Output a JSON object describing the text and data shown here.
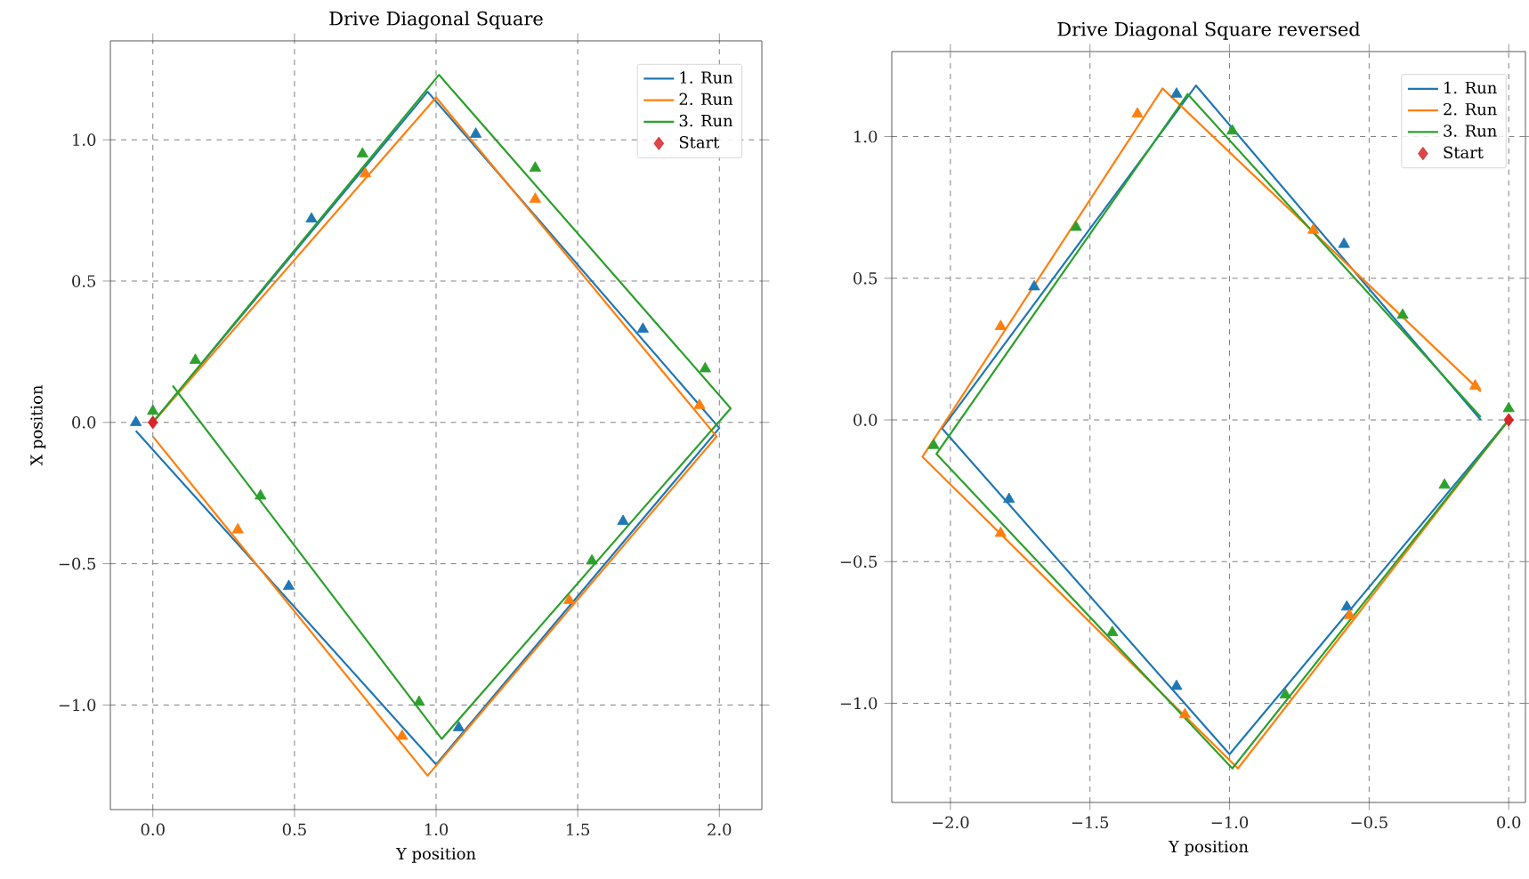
{
  "chart_data": [
    {
      "type": "line",
      "title": "Drive Diagonal Square",
      "xlabel": "Y position",
      "ylabel": "X position",
      "xlim": [
        -0.15,
        2.15
      ],
      "ylim": [
        -1.37,
        1.35
      ],
      "xticks": [
        {
          "value": 0,
          "label": "0.0"
        },
        0.5,
        {
          "value": 1,
          "label": "1.0"
        },
        1.5,
        {
          "value": 2,
          "label": "2.0"
        }
      ],
      "yticks": [
        {
          "value": -1,
          "label": "−1.0"
        },
        {
          "value": -0.5,
          "label": "−0.5"
        },
        {
          "value": 0,
          "label": "0.0"
        },
        0.5,
        {
          "value": 1,
          "label": "1.0"
        }
      ],
      "grid": true,
      "legend": "top right",
      "series": [
        {
          "name": "1. Run",
          "color": "#1f77b4",
          "marker": "none",
          "x": [
            0,
            0.97,
            2.0,
            1.0,
            -0.06
          ],
          "values": [
            0,
            1.17,
            -0.02,
            -1.21,
            -0.03
          ]
        },
        {
          "name": "2. Run",
          "color": "#ff7f0e",
          "marker": "none",
          "x": [
            0,
            1.0,
            1.99,
            0.97,
            0.0
          ],
          "values": [
            0,
            1.15,
            -0.05,
            -1.25,
            -0.05
          ]
        },
        {
          "name": "3. Run",
          "color": "#2ca02c",
          "marker": "none",
          "x": [
            0,
            1.01,
            2.04,
            1.02,
            0.07
          ],
          "values": [
            0,
            1.23,
            0.05,
            -1.12,
            0.13
          ]
        },
        {
          "name": "Start",
          "type": "scatter",
          "color": "#d62728",
          "marker": "diamond",
          "x": [
            0
          ],
          "values": [
            0
          ]
        },
        {
          "type": "scatter",
          "color": "#1f77b4",
          "marker": "triangle",
          "x": [
            0.56,
            1.14,
            1.73,
            1.66,
            1.08,
            0.48,
            -0.06
          ],
          "values": [
            0.72,
            1.02,
            0.33,
            -0.35,
            -1.08,
            -0.58,
            0.0
          ]
        },
        {
          "type": "scatter",
          "color": "#ff7f0e",
          "marker": "triangle",
          "x": [
            0.75,
            1.35,
            1.93,
            1.47,
            0.88,
            0.3
          ],
          "values": [
            0.88,
            0.79,
            0.06,
            -0.63,
            -1.11,
            -0.38
          ]
        },
        {
          "type": "scatter",
          "color": "#2ca02c",
          "marker": "triangle",
          "x": [
            0.74,
            1.35,
            1.95,
            1.55,
            0.94,
            0.38,
            0.15,
            0.0
          ],
          "values": [
            0.95,
            0.9,
            0.19,
            -0.49,
            -0.99,
            -0.26,
            0.22,
            0.04
          ]
        }
      ]
    },
    {
      "type": "line",
      "title": "Drive Diagonal Square reversed",
      "xlabel": "Y position",
      "xlim": [
        -2.21,
        0.06
      ],
      "ylim": [
        -1.35,
        1.3
      ],
      "xticks": [
        {
          "value": -2,
          "label": "−2.0"
        },
        {
          "value": -1.5,
          "label": "−1.5"
        },
        {
          "value": -1,
          "label": "−1.0"
        },
        {
          "value": -0.5,
          "label": "−0.5"
        },
        {
          "value": 0,
          "label": "0.0"
        }
      ],
      "yticks": [
        {
          "value": -1,
          "label": "−1.0"
        },
        {
          "value": -0.5,
          "label": "−0.5"
        },
        {
          "value": 0,
          "label": "0.0"
        },
        0.5,
        {
          "value": 1,
          "label": "1.0"
        }
      ],
      "grid": true,
      "legend": "top right",
      "series": [
        {
          "name": "1. Run",
          "color": "#1f77b4",
          "marker": "none",
          "x": [
            0,
            -1.0,
            -2.03,
            -1.12,
            -0.1
          ],
          "values": [
            0,
            -1.18,
            -0.03,
            1.18,
            0.0
          ]
        },
        {
          "name": "2. Run",
          "color": "#ff7f0e",
          "marker": "none",
          "x": [
            0,
            -0.97,
            -2.1,
            -1.24,
            -0.1
          ],
          "values": [
            0,
            -1.23,
            -0.13,
            1.17,
            0.1
          ]
        },
        {
          "name": "3. Run",
          "color": "#2ca02c",
          "marker": "none",
          "x": [
            0,
            -0.99,
            -2.05,
            -1.15,
            -0.1
          ],
          "values": [
            0,
            -1.23,
            -0.12,
            1.15,
            0.01
          ]
        },
        {
          "name": "Start",
          "type": "scatter",
          "color": "#d62728",
          "marker": "diamond",
          "x": [
            0
          ],
          "values": [
            0
          ]
        },
        {
          "type": "scatter",
          "color": "#1f77b4",
          "marker": "triangle",
          "x": [
            -0.58,
            -1.19,
            -1.79,
            -1.7,
            -1.19,
            -0.59
          ],
          "values": [
            -0.66,
            -0.94,
            -0.28,
            0.47,
            1.15,
            0.62
          ]
        },
        {
          "type": "scatter",
          "color": "#ff7f0e",
          "marker": "triangle",
          "x": [
            -0.57,
            -1.16,
            -1.82,
            -1.82,
            -1.33,
            -0.7,
            -0.12
          ],
          "values": [
            -0.69,
            -1.04,
            -0.4,
            0.33,
            1.08,
            0.67,
            0.12
          ]
        },
        {
          "type": "scatter",
          "color": "#2ca02c",
          "marker": "triangle",
          "x": [
            -0.23,
            -0.8,
            -1.42,
            -2.06,
            -1.55,
            -0.99,
            -0.38,
            0.0
          ],
          "values": [
            -0.23,
            -0.97,
            -0.75,
            -0.09,
            0.68,
            1.02,
            0.37,
            0.04
          ]
        }
      ]
    }
  ]
}
